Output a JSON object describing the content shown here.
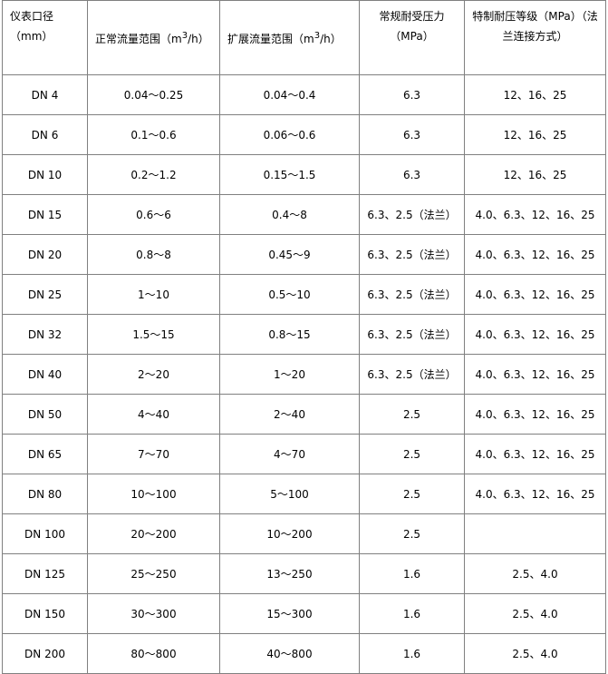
{
  "headers": [
    "仪表口径（mm）",
    "正常流量范围（m",
    "扩展流量范围（m",
    "常规耐受压力（MPa）",
    "特制耐压等级（MPa）（法兰连接方式）"
  ],
  "header_suffix": "/h）",
  "superscript": "3",
  "rows": [
    [
      "DN 4",
      "0.04～0.25",
      "0.04～0.4",
      "6.3",
      "12、16、25"
    ],
    [
      "DN 6",
      "0.1～0.6",
      "0.06～0.6",
      "6.3",
      "12、16、25"
    ],
    [
      "DN 10",
      "0.2～1.2",
      "0.15～1.5",
      "6.3",
      "12、16、25"
    ],
    [
      "DN 15",
      "0.6～6",
      "0.4～8",
      "6.3、2.5（法兰）",
      "4.0、6.3、12、16、25"
    ],
    [
      "DN 20",
      "0.8～8",
      "0.45～9",
      "6.3、2.5（法兰）",
      "4.0、6.3、12、16、25"
    ],
    [
      "DN 25",
      "1～10",
      "0.5～10",
      "6.3、2.5（法兰）",
      "4.0、6.3、12、16、25"
    ],
    [
      "DN 32",
      "1.5～15",
      "0.8～15",
      "6.3、2.5（法兰）",
      "4.0、6.3、12、16、25"
    ],
    [
      "DN 40",
      "2～20",
      "1～20",
      "6.3、2.5（法兰）",
      "4.0、6.3、12、16、25"
    ],
    [
      "DN 50",
      "4～40",
      "2～40",
      "2.5",
      "4.0、6.3、12、16、25"
    ],
    [
      "DN 65",
      "7～70",
      "4～70",
      "2.5",
      "4.0、6.3、12、16、25"
    ],
    [
      "DN 80",
      "10～100",
      "5～100",
      "2.5",
      "4.0、6.3、12、16、25"
    ],
    [
      "DN 100",
      "20～200",
      "10～200",
      "2.5",
      ""
    ],
    [
      "DN 125",
      "25～250",
      "13～250",
      "1.6",
      "2.5、4.0"
    ],
    [
      "DN 150",
      "30～300",
      "15～300",
      "1.6",
      "2.5、4.0"
    ],
    [
      "DN 200",
      "80～800",
      "40～800",
      "1.6",
      "2.5、4.0"
    ]
  ]
}
